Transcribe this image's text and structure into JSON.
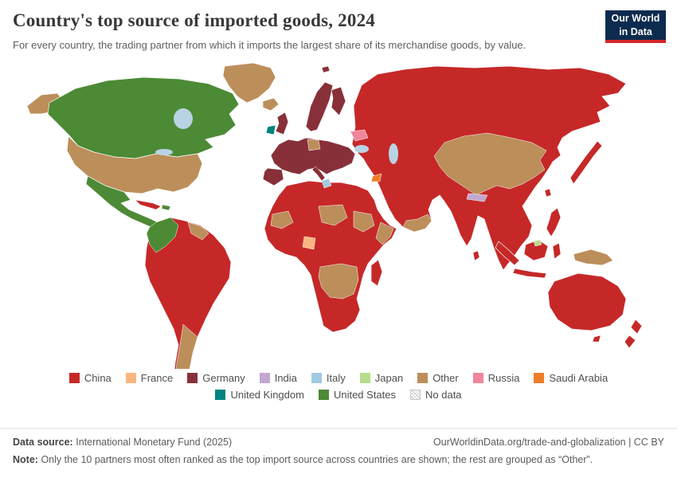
{
  "header": {
    "title": "Country's top source of imported goods, 2024",
    "subtitle": "For every country, the trading partner from which it imports the largest share of its merchandise goods, by value.",
    "logo_line1": "Our World",
    "logo_line2": "in Data",
    "logo_bg": "#0d2b4e",
    "logo_accent": "#d7262c"
  },
  "legend": {
    "rows": [
      [
        "China",
        "France",
        "Germany",
        "India",
        "Italy",
        "Japan",
        "Other",
        "Russia",
        "Saudi Arabia"
      ],
      [
        "United Kingdom",
        "United States",
        "No data"
      ]
    ]
  },
  "footer": {
    "source_label": "Data source:",
    "source_text": "International Monetary Fund (2025)",
    "link_text": "OurWorldinData.org/trade-and-globalization | CC BY",
    "note_label": "Note:",
    "note_text": "Only the 10 partners most often ranked as the top import source across countries are shown; the rest are grouped as “Other”."
  },
  "chart_data": {
    "type": "choropleth",
    "title": "Country's top source of imported goods, 2024",
    "year": "2024",
    "legend_position": "bottom",
    "categories": [
      "China",
      "France",
      "Germany",
      "India",
      "Italy",
      "Japan",
      "Other",
      "Russia",
      "Saudi Arabia",
      "United Kingdom",
      "United States",
      "No data"
    ],
    "colors": {
      "China": "#c62828",
      "France": "#f9b67e",
      "Germany": "#883039",
      "India": "#c2a8cf",
      "Italy": "#a2c9e0",
      "Japan": "#b6dd8b",
      "Other": "#bc8e5a",
      "Russia": "#f0859c",
      "Saudi Arabia": "#ee7d28",
      "United Kingdom": "#00847e",
      "United States": "#4c8a35",
      "No data": "#ffffff"
    },
    "water_color": "#b8d3e3",
    "country_assignments": {
      "Canada": "United States",
      "United States": "Other",
      "Greenland": "Other",
      "Mexico": "United States",
      "Central America": "United States",
      "Cuba": "China",
      "Hispaniola": "United States",
      "Colombia": "United States",
      "Ecuador": "United States",
      "Venezuela": "China",
      "Guyana & Suriname": "Other",
      "Brazil": "China",
      "Peru": "China",
      "Bolivia": "China",
      "Chile": "China",
      "Argentina": "Other",
      "Iceland": "Other",
      "United Kingdom": "Germany",
      "Ireland": "United Kingdom",
      "France": "Germany",
      "Spain": "Germany",
      "Portugal": "Germany",
      "Italy": "Germany",
      "Norway": "Germany",
      "Sweden": "Germany",
      "Finland": "Germany",
      "Poland": "Germany",
      "Austria": "Germany",
      "Czechia": "Germany",
      "Hungary": "Germany",
      "Germany": "Other",
      "Ukraine": "China",
      "Belarus": "Russia",
      "Russia": "China",
      "Turkey": "China",
      "Morocco": "China",
      "Algeria": "China",
      "Tunisia": "Italy",
      "Libya": "China",
      "Egypt": "China",
      "Mauritania": "Other",
      "Mali": "China",
      "Niger": "Other",
      "Chad": "Other",
      "Sudan": "Other",
      "Ethiopia": "China",
      "Somalia": "Other",
      "Nigeria": "China",
      "Ghana": "China",
      "Gabon": "France",
      "DR Congo": "China",
      "Angola": "China",
      "Kenya": "China",
      "Tanzania": "China",
      "Zambia": "Other",
      "Zimbabwe": "Other",
      "Botswana": "Other",
      "Namibia": "Other",
      "Mozambique": "Other",
      "South Africa": "China",
      "Madagascar": "China",
      "Saudi Arabia": "China",
      "Iraq": "China",
      "Iran": "China",
      "Jordan": "Saudi Arabia",
      "Yemen": "Other",
      "Oman": "Other",
      "Kazakhstan": "China",
      "Uzbekistan": "China",
      "Afghanistan": "China",
      "Pakistan": "China",
      "India": "China",
      "Nepal": "India",
      "Bhutan": "India",
      "Sri Lanka": "China",
      "Bangladesh": "China",
      "Myanmar": "China",
      "Thailand": "China",
      "Vietnam": "China",
      "Malaysia": "China",
      "Indonesia": "China",
      "Brunei": "Japan",
      "Philippines": "China",
      "China": "Other",
      "Mongolia": "China",
      "South Korea": "China",
      "Japan": "China",
      "Taiwan": "China",
      "Papua New Guinea": "Other",
      "Australia": "China",
      "New Zealand": "China"
    }
  }
}
